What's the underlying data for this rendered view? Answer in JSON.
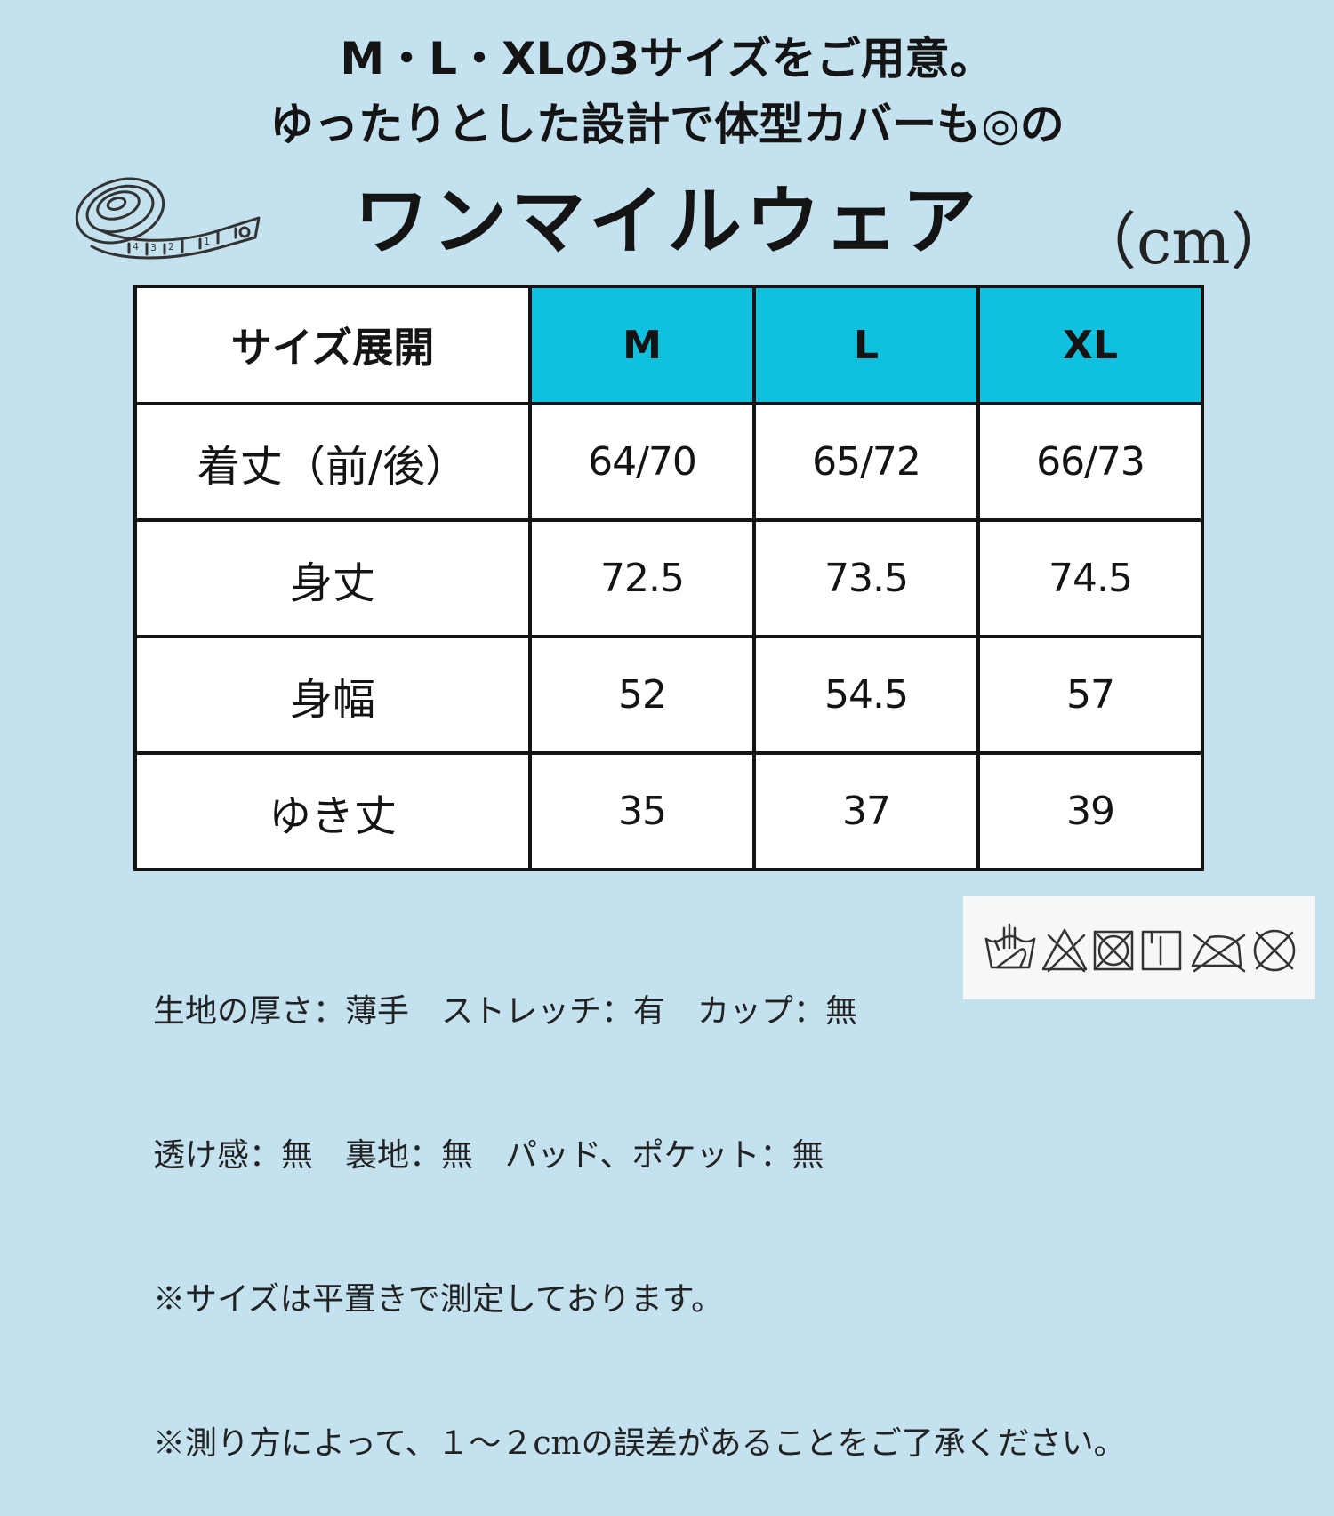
{
  "header": {
    "line1": "M・L・XLの3サイズをご用意。",
    "line2": "ゆったりとした設計で体型カバーも◎の",
    "line3": "ワンマイルウェア",
    "unit": "（cm）"
  },
  "table": {
    "corner_label": "サイズ展開",
    "sizes": [
      "M",
      "L",
      "XL"
    ],
    "rows": [
      {
        "label": "着丈（前/後）",
        "values": [
          "64/70",
          "65/72",
          "66/73"
        ]
      },
      {
        "label": "身丈",
        "values": [
          "72.5",
          "73.5",
          "74.5"
        ]
      },
      {
        "label": "身幅",
        "values": [
          "52",
          "54.5",
          "57"
        ]
      },
      {
        "label": "ゆき丈",
        "values": [
          "35",
          "37",
          "39"
        ]
      }
    ]
  },
  "notes": [
    "生地の厚さ：薄手　ストレッチ：有　カップ：無",
    "透け感：無　裏地：無　パッド、ポケット：無",
    "※サイズは平置きで測定しております。",
    "※測り方によって、１～２cmの誤差があることをご了承ください。"
  ],
  "icons": [
    "measuring-tape-icon",
    "hand-wash-icon",
    "no-bleach-icon",
    "no-tumble-dry-icon",
    "line-dry-icon",
    "no-iron-icon",
    "no-dry-clean-icon"
  ],
  "colors": {
    "background": "#c3e1ef",
    "size_header": "#10c0df",
    "cell": "#ffffff",
    "border": "#141414"
  }
}
